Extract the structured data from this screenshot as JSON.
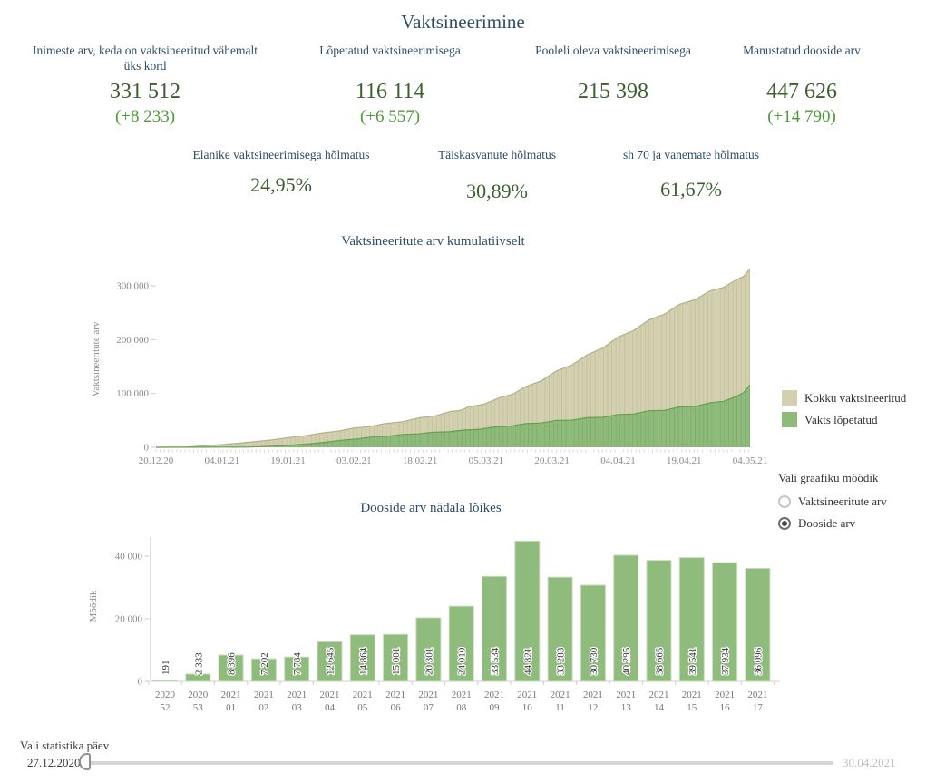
{
  "header": {
    "title": "Vaktsineerimine"
  },
  "kpis": [
    {
      "label": "Inimeste arv, keda on vaktsineeritud vähemalt üks kord",
      "value": "331 512",
      "delta": "(+8 233)"
    },
    {
      "label": "Lõpetatud vaktsineerimisega",
      "value": "116 114",
      "delta": "(+6 557)"
    },
    {
      "label": "Pooleli oleva vaktsineerimisega",
      "value": "215 398"
    },
    {
      "label": "Manustatud dooside arv",
      "value": "447 626",
      "delta": "(+14 790)"
    }
  ],
  "coverage": [
    {
      "label": "Elanike  vaktsineerimisega hõlmatus",
      "value": "24,95%"
    },
    {
      "label": "Täiskasvanute hõlmatus",
      "value": "30,89%"
    },
    {
      "label": "sh 70 ja vanemate hõlmatus",
      "value": "61,67%"
    }
  ],
  "colors": {
    "heading": "#2e4d68",
    "value_green": "#3c5f2f",
    "delta_green": "#4d9b39",
    "total_area": "#d3d0af",
    "done_area": "#8eba7b",
    "bar_green": "#8fbb7d"
  },
  "chart_data": [
    {
      "type": "area",
      "title": "Vaktsineeritute arv kumulatiivselt",
      "xlabel": "",
      "ylabel": "Vaktsineeritute arv",
      "ylim": [
        0,
        340000
      ],
      "yticks": [
        0,
        100000,
        200000,
        300000
      ],
      "xticklabels": [
        "20.12.20",
        "04.01.21",
        "19.01.21",
        "03.02.21",
        "18.02.21",
        "05.03.21",
        "20.03.21",
        "04.04.21",
        "19.04.21",
        "04.05.21"
      ],
      "grid": false,
      "legend_position": "right",
      "series": [
        {
          "name": "Kokku vaktsineeritud",
          "color": "#d3d0af",
          "stripe": "#c5c29e",
          "edge": "#b3b08a",
          "points": [
            [
              "20.12.20",
              0
            ],
            [
              "27.12.20",
              500
            ],
            [
              "04.01.21",
              5000
            ],
            [
              "12.01.21",
              11000
            ],
            [
              "19.01.21",
              18000
            ],
            [
              "27.01.21",
              27000
            ],
            [
              "03.02.21",
              36000
            ],
            [
              "10.02.21",
              44000
            ],
            [
              "18.02.21",
              55000
            ],
            [
              "25.02.21",
              67000
            ],
            [
              "01.03.21",
              75000
            ],
            [
              "08.03.21",
              92000
            ],
            [
              "14.03.21",
              113000
            ],
            [
              "21.03.21",
              142000
            ],
            [
              "28.03.21",
              172000
            ],
            [
              "04.04.21",
              205000
            ],
            [
              "11.04.21",
              237000
            ],
            [
              "18.04.21",
              266000
            ],
            [
              "25.04.21",
              291000
            ],
            [
              "01.05.21",
              312000
            ],
            [
              "04.05.21",
              331512
            ]
          ]
        },
        {
          "name": "Vakts lõpetatud",
          "color": "#8eba7b",
          "stripe": "#80ad6b",
          "edge": "#66a050",
          "points": [
            [
              "20.12.20",
              0
            ],
            [
              "10.01.21",
              300
            ],
            [
              "17.01.21",
              2500
            ],
            [
              "24.01.21",
              6500
            ],
            [
              "31.01.21",
              13000
            ],
            [
              "07.02.21",
              19000
            ],
            [
              "14.02.21",
              24000
            ],
            [
              "21.02.21",
              28000
            ],
            [
              "28.02.21",
              32000
            ],
            [
              "07.03.21",
              38000
            ],
            [
              "14.03.21",
              44000
            ],
            [
              "21.03.21",
              50000
            ],
            [
              "28.03.21",
              55000
            ],
            [
              "04.04.21",
              61000
            ],
            [
              "11.04.21",
              68000
            ],
            [
              "18.04.21",
              75000
            ],
            [
              "25.04.21",
              83000
            ],
            [
              "01.05.21",
              95000
            ],
            [
              "04.05.21",
              116114
            ]
          ]
        }
      ]
    },
    {
      "type": "bar",
      "title": "Dooside arv nädala lõikes",
      "xlabel": "",
      "ylabel": "Mõõdik",
      "ylim": [
        0,
        46000
      ],
      "yticks": [
        0,
        20000,
        40000
      ],
      "grid": false,
      "categories": [
        "2020 52",
        "2020 53",
        "2021 01",
        "2021 02",
        "2021 03",
        "2021 04",
        "2021 05",
        "2021 06",
        "2021 07",
        "2021 08",
        "2021 09",
        "2021 10",
        "2021 11",
        "2021 12",
        "2021 13",
        "2021 14",
        "2021 15",
        "2021 16",
        "2021 17"
      ],
      "values": [
        191,
        2333,
        8396,
        7202,
        7784,
        12645,
        14864,
        15001,
        20301,
        24010,
        33534,
        44821,
        33283,
        30730,
        40295,
        38665,
        39541,
        37934,
        36096
      ],
      "bar_color": "#8fbb7d"
    }
  ],
  "controls": {
    "metric_selector": {
      "title": "Vali graafiku mõõdik",
      "options": [
        {
          "label": "Vaktsineeritute arv",
          "selected": false
        },
        {
          "label": "Dooside arv",
          "selected": true
        }
      ]
    }
  },
  "slider": {
    "label": "Vali statistika päev",
    "start": "27.12.2020",
    "end": "30.04.2021"
  }
}
